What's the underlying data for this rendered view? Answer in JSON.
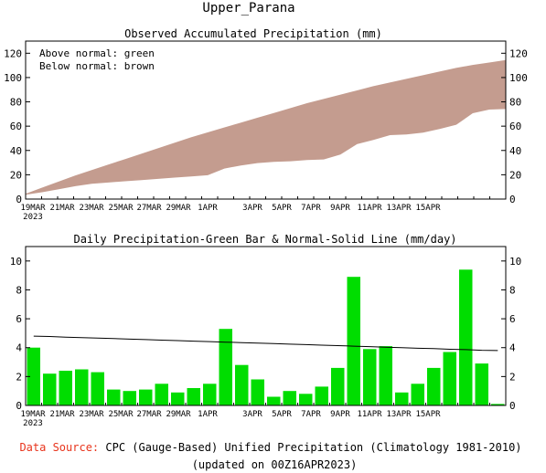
{
  "page": {
    "region_title": "Upper_Parana",
    "footer": {
      "source_label": "Data Source:",
      "source_text": " CPC (Gauge-Based) Unified Precipitation (Climatology 1981-2010)",
      "updated": "(updated on 00Z16APR2023)",
      "label_color": "#e8341c"
    }
  },
  "chart_data": [
    {
      "type": "area",
      "title": "Observed Accumulated Precipitation (mm)",
      "legend": [
        "Above normal: green",
        "Below normal: brown"
      ],
      "legend_position": "top-left",
      "x_tick_labels": [
        "19MAR",
        "21MAR",
        "23MAR",
        "25MAR",
        "27MAR",
        "29MAR",
        "1APR",
        "3APR",
        "5APR",
        "7APR",
        "9APR",
        "11APR",
        "13APR",
        "15APR"
      ],
      "x_year_label": "2023",
      "ylim": [
        0,
        130
      ],
      "yticks": [
        0,
        20,
        40,
        60,
        80,
        100,
        120
      ],
      "grid": false,
      "colors": {
        "below": "#c49c8f",
        "above": "#00cc00"
      },
      "x": [
        "18MAR",
        "19MAR",
        "20MAR",
        "21MAR",
        "22MAR",
        "23MAR",
        "24MAR",
        "25MAR",
        "26MAR",
        "27MAR",
        "28MAR",
        "29MAR",
        "30MAR",
        "31MAR",
        "1APR",
        "2APR",
        "3APR",
        "4APR",
        "5APR",
        "6APR",
        "7APR",
        "8APR",
        "9APR",
        "10APR",
        "11APR",
        "12APR",
        "13APR",
        "14APR",
        "15APR",
        "16APR"
      ],
      "series": [
        {
          "name": "Observed",
          "values": [
            4,
            6,
            8.5,
            11,
            13,
            14,
            15,
            16,
            17,
            18,
            19,
            20,
            25.5,
            28,
            30,
            31,
            31.5,
            32.5,
            33,
            37,
            45.5,
            49,
            53,
            53.5,
            55,
            58,
            61.5,
            71,
            74,
            74.5
          ]
        },
        {
          "name": "Normal",
          "values": [
            4,
            9,
            14,
            19,
            23.5,
            28,
            32.5,
            37,
            41.5,
            46,
            50.5,
            54.5,
            58.5,
            62.5,
            66.5,
            70.5,
            74.5,
            78.5,
            82,
            85.5,
            89,
            92.5,
            95.5,
            98.5,
            101.5,
            104.5,
            107.5,
            110,
            112,
            114
          ]
        }
      ]
    },
    {
      "type": "bar",
      "title": "Daily Precipitation-Green Bar & Normal-Solid Line (mm/day)",
      "x_tick_labels": [
        "19MAR",
        "21MAR",
        "23MAR",
        "25MAR",
        "27MAR",
        "29MAR",
        "1APR",
        "3APR",
        "5APR",
        "7APR",
        "9APR",
        "11APR",
        "13APR",
        "15APR"
      ],
      "x_year_label": "2023",
      "ylim": [
        0,
        11
      ],
      "yticks": [
        0,
        2,
        4,
        6,
        8,
        10
      ],
      "grid": false,
      "colors": {
        "bar": "#00dd00",
        "line": "#000000"
      },
      "categories": [
        "18MAR",
        "19MAR",
        "20MAR",
        "21MAR",
        "22MAR",
        "23MAR",
        "24MAR",
        "25MAR",
        "26MAR",
        "27MAR",
        "28MAR",
        "29MAR",
        "30MAR",
        "31MAR",
        "1APR",
        "2APR",
        "3APR",
        "4APR",
        "5APR",
        "6APR",
        "7APR",
        "8APR",
        "9APR",
        "10APR",
        "11APR",
        "12APR",
        "13APR",
        "14APR",
        "15APR",
        "16APR"
      ],
      "series": [
        {
          "name": "Daily Precipitation",
          "type": "bar",
          "values": [
            4.0,
            2.2,
            2.4,
            2.5,
            2.3,
            1.1,
            1.0,
            1.1,
            1.5,
            0.9,
            1.2,
            1.5,
            5.3,
            2.8,
            1.8,
            0.6,
            1.0,
            0.8,
            1.3,
            2.6,
            8.9,
            3.9,
            4.1,
            0.9,
            1.5,
            2.6,
            3.7,
            9.4,
            2.9,
            0.1
          ]
        },
        {
          "name": "Normal",
          "type": "line",
          "values": [
            4.8,
            4.77,
            4.73,
            4.7,
            4.66,
            4.63,
            4.59,
            4.56,
            4.52,
            4.49,
            4.45,
            4.42,
            4.38,
            4.35,
            4.31,
            4.28,
            4.24,
            4.21,
            4.17,
            4.14,
            4.1,
            4.07,
            4.03,
            4.0,
            3.96,
            3.93,
            3.89,
            3.86,
            3.82,
            3.8
          ]
        }
      ]
    }
  ]
}
